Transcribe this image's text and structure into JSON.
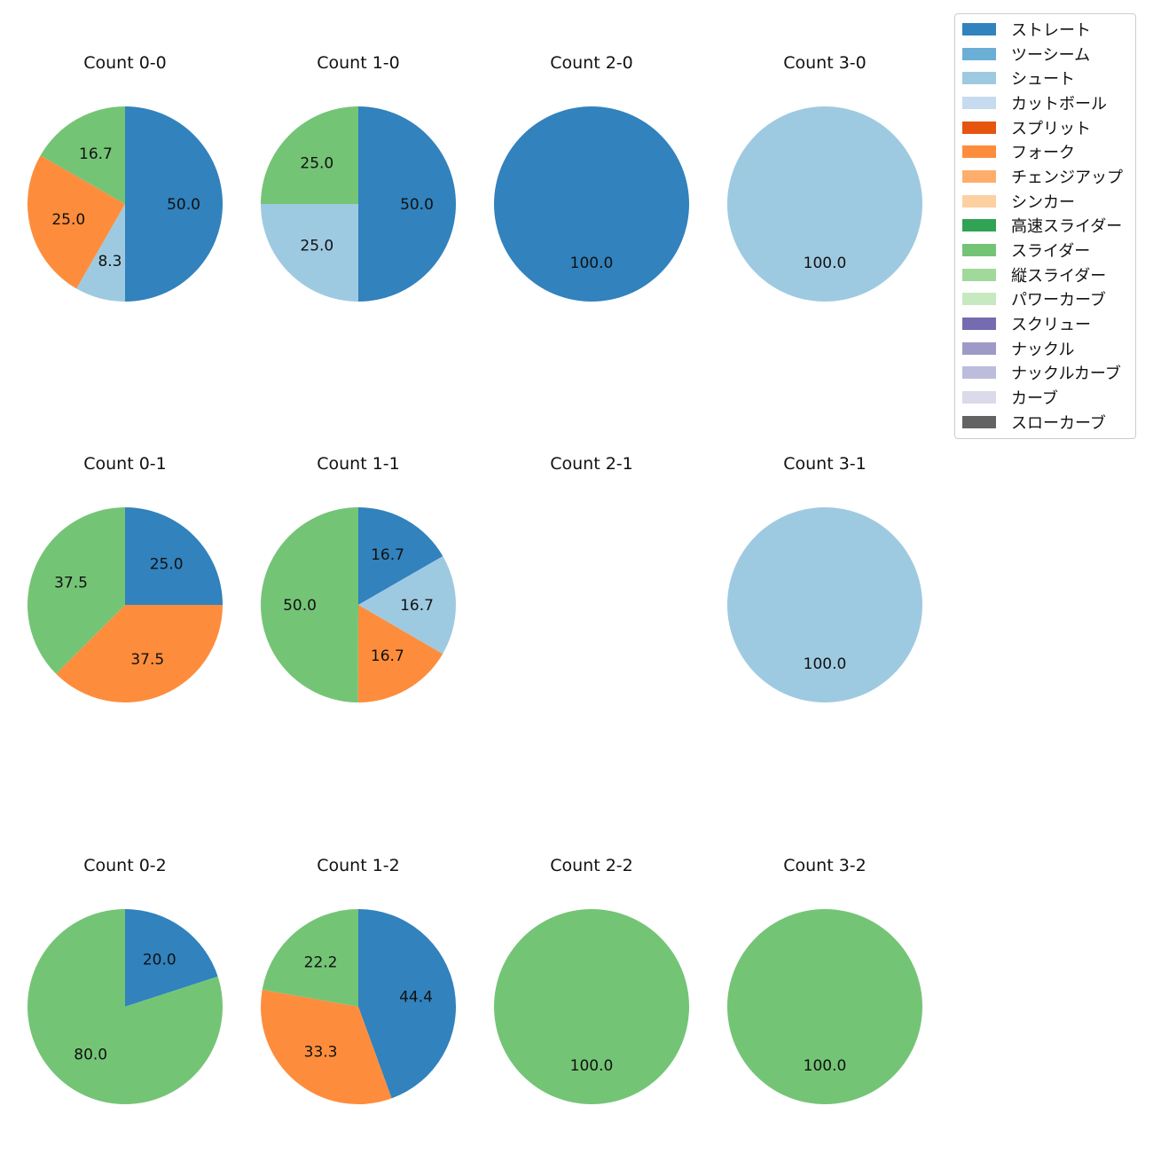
{
  "legend": [
    {
      "name": "ストレート",
      "color": "#3182bd"
    },
    {
      "name": "ツーシーム",
      "color": "#6baed6"
    },
    {
      "name": "シュート",
      "color": "#9ecae1"
    },
    {
      "name": "カットボール",
      "color": "#c6dbef"
    },
    {
      "name": "スプリット",
      "color": "#e6550d"
    },
    {
      "name": "フォーク",
      "color": "#fd8d3c"
    },
    {
      "name": "チェンジアップ",
      "color": "#fdae6b"
    },
    {
      "name": "シンカー",
      "color": "#fdd0a2"
    },
    {
      "name": "高速スライダー",
      "color": "#31a354"
    },
    {
      "name": "スライダー",
      "color": "#74c476"
    },
    {
      "name": "縦スライダー",
      "color": "#a1d99b"
    },
    {
      "name": "パワーカーブ",
      "color": "#c7e9c0"
    },
    {
      "name": "スクリュー",
      "color": "#756bb1"
    },
    {
      "name": "ナックル",
      "color": "#9e9ac8"
    },
    {
      "name": "ナックルカーブ",
      "color": "#bcbddc"
    },
    {
      "name": "カーブ",
      "color": "#dadaeb"
    },
    {
      "name": "スローカーブ",
      "color": "#636363"
    }
  ],
  "chart_data": [
    {
      "type": "pie",
      "title": "Count 0-0",
      "slices": [
        {
          "category": "ストレート",
          "value": 50.0,
          "label": "50.0"
        },
        {
          "category": "シュート",
          "value": 8.3,
          "label": "8.3"
        },
        {
          "category": "フォーク",
          "value": 25.0,
          "label": "25.0"
        },
        {
          "category": "スライダー",
          "value": 16.7,
          "label": "16.7"
        }
      ]
    },
    {
      "type": "pie",
      "title": "Count 1-0",
      "slices": [
        {
          "category": "ストレート",
          "value": 50.0,
          "label": "50.0"
        },
        {
          "category": "シュート",
          "value": 25.0,
          "label": "25.0"
        },
        {
          "category": "スライダー",
          "value": 25.0,
          "label": "25.0"
        }
      ]
    },
    {
      "type": "pie",
      "title": "Count 2-0",
      "slices": [
        {
          "category": "ストレート",
          "value": 100.0,
          "label": "100.0"
        }
      ]
    },
    {
      "type": "pie",
      "title": "Count 3-0",
      "slices": [
        {
          "category": "シュート",
          "value": 100.0,
          "label": "100.0"
        }
      ]
    },
    {
      "type": "pie",
      "title": "Count 0-1",
      "slices": [
        {
          "category": "ストレート",
          "value": 25.0,
          "label": "25.0"
        },
        {
          "category": "フォーク",
          "value": 37.5,
          "label": "37.5"
        },
        {
          "category": "スライダー",
          "value": 37.5,
          "label": "37.5"
        }
      ]
    },
    {
      "type": "pie",
      "title": "Count 1-1",
      "slices": [
        {
          "category": "ストレート",
          "value": 16.7,
          "label": "16.7"
        },
        {
          "category": "シュート",
          "value": 16.7,
          "label": "16.7"
        },
        {
          "category": "フォーク",
          "value": 16.7,
          "label": "16.7"
        },
        {
          "category": "スライダー",
          "value": 50.0,
          "label": "50.0"
        }
      ]
    },
    {
      "type": "pie",
      "title": "Count 2-1",
      "slices": []
    },
    {
      "type": "pie",
      "title": "Count 3-1",
      "slices": [
        {
          "category": "シュート",
          "value": 100.0,
          "label": "100.0"
        }
      ]
    },
    {
      "type": "pie",
      "title": "Count 0-2",
      "slices": [
        {
          "category": "ストレート",
          "value": 20.0,
          "label": "20.0"
        },
        {
          "category": "スライダー",
          "value": 80.0,
          "label": "80.0"
        }
      ]
    },
    {
      "type": "pie",
      "title": "Count 1-2",
      "slices": [
        {
          "category": "ストレート",
          "value": 44.4,
          "label": "44.4"
        },
        {
          "category": "フォーク",
          "value": 33.3,
          "label": "33.3"
        },
        {
          "category": "スライダー",
          "value": 22.2,
          "label": "22.2"
        }
      ]
    },
    {
      "type": "pie",
      "title": "Count 2-2",
      "slices": [
        {
          "category": "スライダー",
          "value": 100.0,
          "label": "100.0"
        }
      ]
    },
    {
      "type": "pie",
      "title": "Count 3-2",
      "slices": [
        {
          "category": "スライダー",
          "value": 100.0,
          "label": "100.0"
        }
      ]
    }
  ]
}
